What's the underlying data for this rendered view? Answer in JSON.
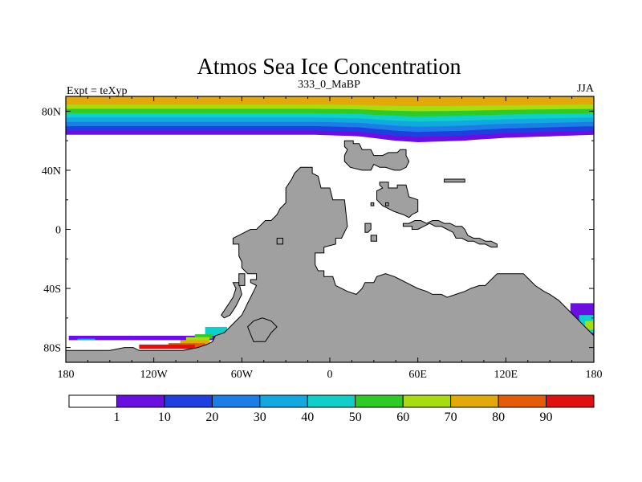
{
  "chart_data": {
    "type": "heatmap",
    "title": "Atmos Sea Ice Concentration",
    "subtitle_left": "Expt = teXyp",
    "subtitle_center": "333_0_MaBP",
    "subtitle_right": "JJA",
    "x_range": [
      -180,
      180
    ],
    "y_range": [
      -90,
      90
    ],
    "x_ticks": [
      {
        "value": -180,
        "label": "180"
      },
      {
        "value": -120,
        "label": "120W"
      },
      {
        "value": -60,
        "label": "60W"
      },
      {
        "value": 0,
        "label": "0"
      },
      {
        "value": 60,
        "label": "60E"
      },
      {
        "value": 120,
        "label": "120E"
      },
      {
        "value": 180,
        "label": "180"
      }
    ],
    "y_ticks": [
      {
        "value": 80,
        "label": "80N"
      },
      {
        "value": 40,
        "label": "40N"
      },
      {
        "value": 0,
        "label": "0"
      },
      {
        "value": -40,
        "label": "40S"
      },
      {
        "value": -80,
        "label": "80S"
      }
    ],
    "colorbar": {
      "colors": [
        "#ffffff",
        "#6a0fe0",
        "#1f3fe0",
        "#1a7ee6",
        "#12a8e0",
        "#10cfc8",
        "#2ecb28",
        "#a6dc10",
        "#e3a80a",
        "#e55c08",
        "#e01010"
      ],
      "boundaries": [
        1,
        10,
        20,
        30,
        40,
        50,
        60,
        70,
        80,
        90
      ],
      "labels": [
        "1",
        "10",
        "20",
        "30",
        "40",
        "50",
        "60",
        "70",
        "80",
        "90"
      ]
    },
    "land_color": "#a0a0a0",
    "arctic_ice": {
      "bands": [
        {
          "value": 5,
          "color": "#6a0fe0"
        },
        {
          "value": 15,
          "color": "#1f3fe0"
        },
        {
          "value": 25,
          "color": "#1a7ee6"
        },
        {
          "value": 35,
          "color": "#12a8e0"
        },
        {
          "value": 45,
          "color": "#10cfc8"
        },
        {
          "value": 55,
          "color": "#2ecb28"
        },
        {
          "value": 65,
          "color": "#a6dc10"
        },
        {
          "value": 75,
          "color": "#e3a80a"
        }
      ],
      "edge_lat": [
        {
          "lon": -180,
          "lat": 64
        },
        {
          "lon": -60,
          "lat": 64
        },
        {
          "lon": -10,
          "lat": 64
        },
        {
          "lon": 20,
          "lat": 63
        },
        {
          "lon": 45,
          "lat": 60
        },
        {
          "lon": 60,
          "lat": 59
        },
        {
          "lon": 90,
          "lat": 60
        },
        {
          "lon": 120,
          "lat": 62
        },
        {
          "lon": 150,
          "lat": 63
        },
        {
          "lon": 180,
          "lat": 64
        }
      ]
    },
    "antarctic_ice": [
      {
        "value": 5,
        "lon_start": -178,
        "lon_end": -75,
        "lat_top": -72,
        "lat_bottom": -75
      },
      {
        "value": 35,
        "lon_start": -172,
        "lon_end": -160,
        "lat_top": -74,
        "lat_bottom": -75
      },
      {
        "value": 45,
        "lon_start": -85,
        "lon_end": -70,
        "lat_top": -66,
        "lat_bottom": -72
      },
      {
        "value": 55,
        "lon_start": -92,
        "lon_end": -80,
        "lat_top": -71,
        "lat_bottom": -74
      },
      {
        "value": 65,
        "lon_start": -98,
        "lon_end": -82,
        "lat_top": -73,
        "lat_bottom": -76
      },
      {
        "value": 75,
        "lon_start": -102,
        "lon_end": -82,
        "lat_top": -75,
        "lat_bottom": -79
      },
      {
        "value": 85,
        "lon_start": -110,
        "lon_end": -85,
        "lat_top": -77,
        "lat_bottom": -80
      },
      {
        "value": 95,
        "lon_start": -130,
        "lon_end": -92,
        "lat_top": -78,
        "lat_bottom": -81
      },
      {
        "value": 5,
        "lon_start": 78,
        "lon_end": 102,
        "lat_top": -48,
        "lat_bottom": -53
      },
      {
        "value": 25,
        "lon_start": 85,
        "lon_end": 100,
        "lat_top": -50,
        "lat_bottom": -54
      },
      {
        "value": 55,
        "lon_start": 94,
        "lon_end": 102,
        "lat_top": -53,
        "lat_bottom": -56
      },
      {
        "value": 5,
        "lon_start": 164,
        "lon_end": 180,
        "lat_top": -50,
        "lat_bottom": -75
      },
      {
        "value": 45,
        "lon_start": 170,
        "lon_end": 180,
        "lat_top": -58,
        "lat_bottom": -70
      },
      {
        "value": 65,
        "lon_start": 174,
        "lon_end": 180,
        "lat_top": -62,
        "lat_bottom": -68
      }
    ],
    "land_polygons": [
      [
        [
          -20,
          42
        ],
        [
          -12,
          42
        ],
        [
          -12,
          38
        ],
        [
          -8,
          36
        ],
        [
          -6,
          28
        ],
        [
          0,
          28
        ],
        [
          2,
          20
        ],
        [
          10,
          20
        ],
        [
          12,
          2
        ],
        [
          8,
          -6
        ],
        [
          4,
          -6
        ],
        [
          4,
          -10
        ],
        [
          -4,
          -12
        ],
        [
          -4,
          -16
        ],
        [
          -10,
          -16
        ],
        [
          -10,
          -24
        ],
        [
          -8,
          -28
        ],
        [
          -4,
          -28
        ],
        [
          -4,
          -32
        ],
        [
          2,
          -32
        ],
        [
          4,
          -38
        ],
        [
          8,
          -40
        ],
        [
          12,
          -42
        ],
        [
          18,
          -44
        ],
        [
          22,
          -40
        ],
        [
          24,
          -36
        ],
        [
          30,
          -36
        ],
        [
          32,
          -32
        ],
        [
          38,
          -30
        ],
        [
          44,
          -32
        ],
        [
          48,
          -34
        ],
        [
          52,
          -36
        ],
        [
          56,
          -38
        ],
        [
          60,
          -40
        ],
        [
          66,
          -42
        ],
        [
          70,
          -44
        ],
        [
          76,
          -44
        ],
        [
          80,
          -46
        ],
        [
          86,
          -44
        ],
        [
          92,
          -42
        ],
        [
          96,
          -40
        ],
        [
          102,
          -38
        ],
        [
          106,
          -38
        ],
        [
          110,
          -34
        ],
        [
          114,
          -30
        ],
        [
          118,
          -30
        ],
        [
          122,
          -30
        ],
        [
          126,
          -30
        ],
        [
          132,
          -30
        ],
        [
          136,
          -34
        ],
        [
          140,
          -38
        ],
        [
          146,
          -42
        ],
        [
          150,
          -44
        ],
        [
          156,
          -48
        ],
        [
          160,
          -52
        ],
        [
          164,
          -56
        ],
        [
          168,
          -60
        ],
        [
          172,
          -64
        ],
        [
          176,
          -68
        ],
        [
          180,
          -72
        ],
        [
          180,
          -90
        ],
        [
          -180,
          -90
        ],
        [
          -180,
          -82
        ],
        [
          -172,
          -82
        ],
        [
          -160,
          -82
        ],
        [
          -150,
          -82
        ],
        [
          -140,
          -80
        ],
        [
          -134,
          -80
        ],
        [
          -130,
          -82
        ],
        [
          -116,
          -82
        ],
        [
          -100,
          -82
        ],
        [
          -90,
          -80
        ],
        [
          -84,
          -78
        ],
        [
          -80,
          -76
        ],
        [
          -78,
          -72
        ],
        [
          -72,
          -70
        ],
        [
          -68,
          -66
        ],
        [
          -64,
          -62
        ],
        [
          -60,
          -58
        ],
        [
          -58,
          -54
        ],
        [
          -56,
          -50
        ],
        [
          -54,
          -46
        ],
        [
          -52,
          -42
        ],
        [
          -50,
          -38
        ],
        [
          -54,
          -36
        ],
        [
          -54,
          -34
        ],
        [
          -50,
          -34
        ],
        [
          -50,
          -30
        ],
        [
          -56,
          -30
        ],
        [
          -60,
          -26
        ],
        [
          -60,
          -22
        ],
        [
          -62,
          -18
        ],
        [
          -62,
          -10
        ],
        [
          -66,
          -10
        ],
        [
          -66,
          -6
        ],
        [
          -62,
          -4
        ],
        [
          -58,
          -2
        ],
        [
          -54,
          0
        ],
        [
          -50,
          0
        ],
        [
          -48,
          2
        ],
        [
          -44,
          6
        ],
        [
          -40,
          6
        ],
        [
          -36,
          10
        ],
        [
          -34,
          14
        ],
        [
          -30,
          18
        ],
        [
          -30,
          28
        ],
        [
          -26,
          34
        ],
        [
          -24,
          38
        ],
        [
          -20,
          42
        ]
      ],
      [
        [
          -66,
          -36
        ],
        [
          -62,
          -36
        ],
        [
          -60,
          -44
        ],
        [
          -64,
          -52
        ],
        [
          -68,
          -58
        ],
        [
          -72,
          -60
        ],
        [
          -74,
          -58
        ],
        [
          -70,
          -52
        ],
        [
          -66,
          -46
        ],
        [
          -64,
          -40
        ]
      ],
      [
        [
          10,
          60
        ],
        [
          16,
          60
        ],
        [
          16,
          58
        ],
        [
          20,
          58
        ],
        [
          22,
          54
        ],
        [
          28,
          54
        ],
        [
          30,
          50
        ],
        [
          36,
          50
        ],
        [
          40,
          52
        ],
        [
          46,
          52
        ],
        [
          48,
          54
        ],
        [
          52,
          54
        ],
        [
          52,
          50
        ],
        [
          54,
          46
        ],
        [
          52,
          42
        ],
        [
          48,
          40
        ],
        [
          44,
          40
        ],
        [
          38,
          42
        ],
        [
          34,
          42
        ],
        [
          30,
          44
        ],
        [
          28,
          40
        ],
        [
          22,
          40
        ],
        [
          14,
          42
        ],
        [
          10,
          46
        ],
        [
          10,
          50
        ],
        [
          12,
          54
        ],
        [
          10,
          56
        ]
      ],
      [
        [
          34,
          32
        ],
        [
          40,
          32
        ],
        [
          40,
          28
        ],
        [
          46,
          28
        ],
        [
          46,
          30
        ],
        [
          52,
          30
        ],
        [
          54,
          22
        ],
        [
          60,
          20
        ],
        [
          60,
          12
        ],
        [
          56,
          10
        ],
        [
          54,
          8
        ],
        [
          50,
          10
        ],
        [
          44,
          12
        ],
        [
          40,
          14
        ],
        [
          36,
          16
        ],
        [
          32,
          20
        ],
        [
          32,
          26
        ],
        [
          36,
          28
        ],
        [
          34,
          30
        ]
      ],
      [
        [
          78,
          34
        ],
        [
          92,
          34
        ],
        [
          92,
          32
        ],
        [
          78,
          32
        ]
      ],
      [
        [
          50,
          2
        ],
        [
          56,
          2
        ],
        [
          56,
          0
        ],
        [
          60,
          0
        ],
        [
          64,
          2
        ],
        [
          68,
          4
        ],
        [
          72,
          2
        ],
        [
          76,
          2
        ],
        [
          80,
          0
        ],
        [
          84,
          -2
        ],
        [
          86,
          -6
        ],
        [
          90,
          -6
        ],
        [
          94,
          -8
        ],
        [
          98,
          -8
        ],
        [
          102,
          -10
        ],
        [
          106,
          -10
        ],
        [
          110,
          -12
        ],
        [
          114,
          -12
        ],
        [
          114,
          -10
        ],
        [
          110,
          -8
        ],
        [
          106,
          -8
        ],
        [
          102,
          -6
        ],
        [
          98,
          -6
        ],
        [
          94,
          -4
        ],
        [
          92,
          0
        ],
        [
          90,
          2
        ],
        [
          86,
          2
        ],
        [
          82,
          4
        ],
        [
          78,
          4
        ],
        [
          74,
          6
        ],
        [
          70,
          6
        ],
        [
          66,
          4
        ],
        [
          62,
          6
        ],
        [
          58,
          6
        ],
        [
          54,
          4
        ],
        [
          50,
          4
        ]
      ],
      [
        [
          24,
          4
        ],
        [
          28,
          4
        ],
        [
          28,
          0
        ],
        [
          26,
          -2
        ],
        [
          24,
          -2
        ]
      ],
      [
        [
          28,
          -4
        ],
        [
          32,
          -4
        ],
        [
          32,
          -8
        ],
        [
          28,
          -8
        ]
      ],
      [
        [
          -36,
          -6
        ],
        [
          -32,
          -6
        ],
        [
          -32,
          -10
        ],
        [
          -36,
          -10
        ]
      ],
      [
        [
          -62,
          -30
        ],
        [
          -58,
          -30
        ],
        [
          -58,
          -38
        ],
        [
          -62,
          -38
        ]
      ],
      [
        [
          28,
          18
        ],
        [
          30,
          18
        ],
        [
          30,
          16
        ],
        [
          28,
          16
        ]
      ],
      [
        [
          38,
          18
        ],
        [
          40,
          18
        ],
        [
          40,
          16
        ],
        [
          38,
          16
        ]
      ],
      [
        [
          -52,
          -76
        ],
        [
          -44,
          -76
        ],
        [
          -40,
          -70
        ],
        [
          -36,
          -66
        ],
        [
          -40,
          -62
        ],
        [
          -46,
          -60
        ],
        [
          -52,
          -62
        ],
        [
          -56,
          -66
        ]
      ]
    ]
  }
}
